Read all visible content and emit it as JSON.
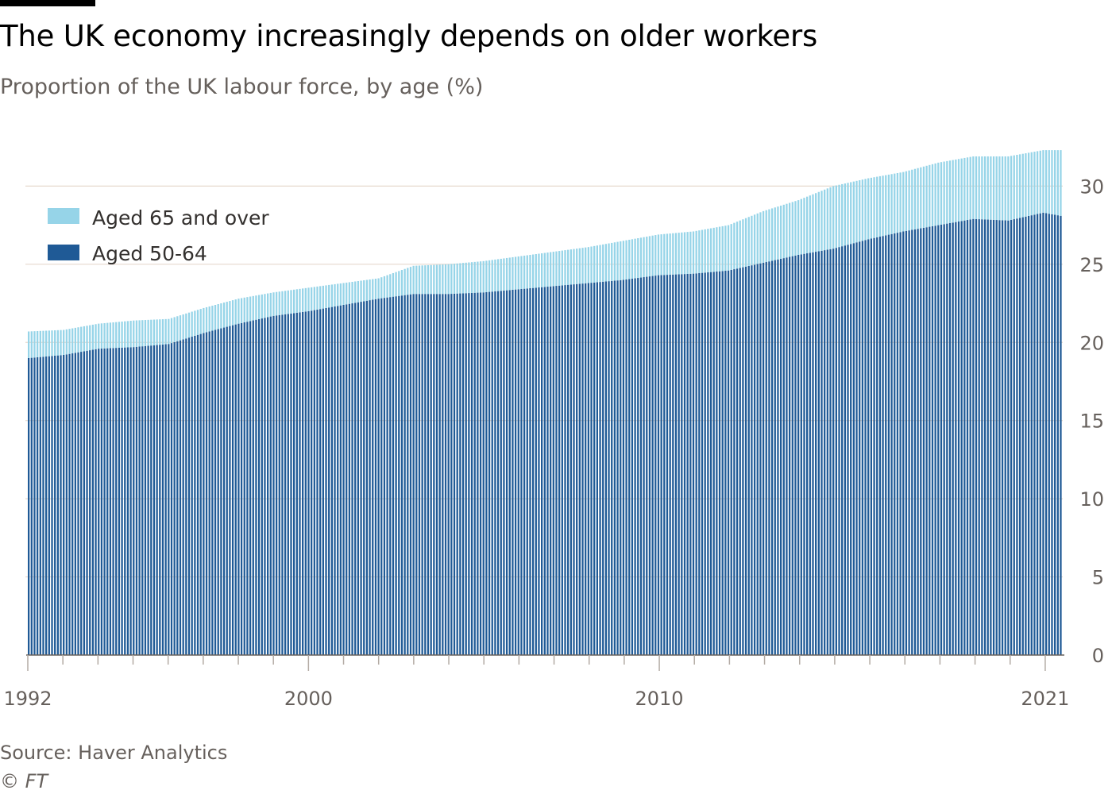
{
  "header": {
    "title": "The UK economy increasingly depends on older workers",
    "subtitle": "Proportion of the UK labour force, by age (%)"
  },
  "footer": {
    "source": "Source: Haver Analytics",
    "copyright_symbol": "©",
    "copyright_brand": "FT"
  },
  "colors": {
    "aged_50_64": "#1f5a96",
    "aged_65_over": "#96d4e8",
    "gridline": "#e6d9ce",
    "axis": "#66605c"
  },
  "chart_data": {
    "type": "bar",
    "stacked": true,
    "title": "The UK economy increasingly depends on older workers",
    "subtitle": "Proportion of the UK labour force, by age (%)",
    "xlabel": "",
    "ylabel": "%",
    "ylim": [
      0,
      32
    ],
    "yticks": [
      0,
      5,
      10,
      15,
      20,
      25,
      30
    ],
    "x_tick_labels": [
      "1992",
      "2000",
      "2010",
      "2021"
    ],
    "x_tick_label_years": [
      1992,
      2000,
      2010,
      2021
    ],
    "x_minor_tick_years": [
      1992,
      1993,
      1994,
      1995,
      1996,
      1997,
      1998,
      1999,
      2000,
      2001,
      2002,
      2003,
      2004,
      2005,
      2006,
      2007,
      2008,
      2009,
      2010,
      2011,
      2012,
      2013,
      2014,
      2015,
      2016,
      2017,
      2018,
      2019,
      2020,
      2021
    ],
    "frequency": "monthly (values given at yearly points, interpolated between)",
    "legend": [
      "Aged 65 and over",
      "Aged 50-64"
    ],
    "legend_position": "top-left",
    "grid": "horizontal",
    "years": [
      1992,
      1993,
      1994,
      1995,
      1996,
      1997,
      1998,
      1999,
      2000,
      2001,
      2002,
      2003,
      2004,
      2005,
      2006,
      2007,
      2008,
      2009,
      2010,
      2011,
      2012,
      2013,
      2014,
      2015,
      2016,
      2017,
      2018,
      2019,
      2020,
      2021,
      2021.5
    ],
    "series": [
      {
        "name": "Aged 50-64",
        "values": [
          19.0,
          19.2,
          19.6,
          19.7,
          19.9,
          20.6,
          21.2,
          21.7,
          22.0,
          22.4,
          22.8,
          23.1,
          23.1,
          23.2,
          23.4,
          23.6,
          23.8,
          24.0,
          24.3,
          24.4,
          24.6,
          25.1,
          25.6,
          26.0,
          26.6,
          27.1,
          27.5,
          27.9,
          27.8,
          28.3,
          28.1
        ]
      },
      {
        "name": "Aged 65 and over",
        "values": [
          1.7,
          1.6,
          1.6,
          1.7,
          1.6,
          1.6,
          1.6,
          1.5,
          1.5,
          1.4,
          1.3,
          1.8,
          1.9,
          2.0,
          2.1,
          2.2,
          2.3,
          2.5,
          2.6,
          2.7,
          2.9,
          3.3,
          3.5,
          4.0,
          3.9,
          3.8,
          4.0,
          4.0,
          4.1,
          4.0,
          4.2
        ]
      }
    ]
  }
}
